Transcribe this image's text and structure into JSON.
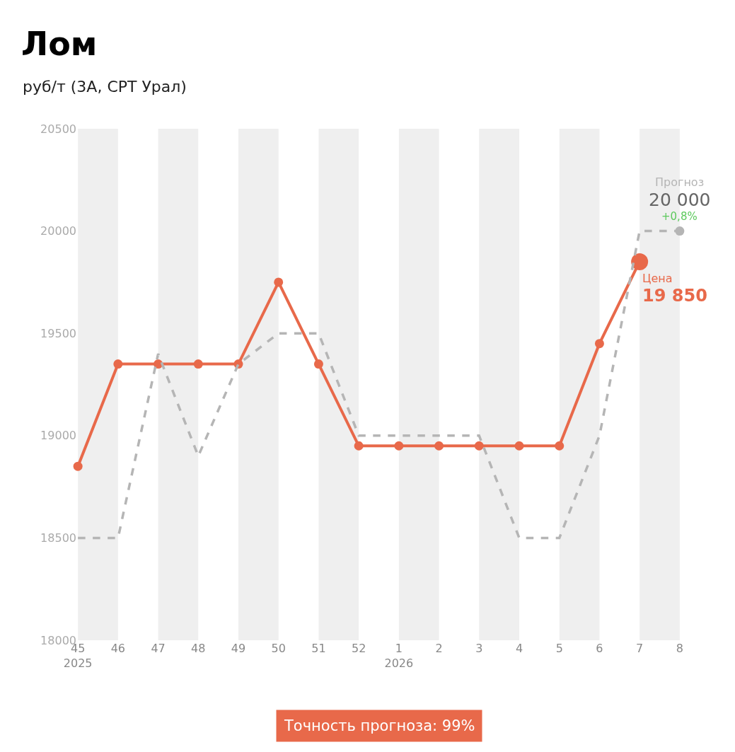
{
  "chart_data": {
    "type": "line",
    "title": "Лом",
    "subtitle": "руб/т (3А, СРТ Урал)",
    "categories": [
      "45\n2025",
      "46",
      "47",
      "48",
      "49",
      "50",
      "51",
      "52",
      "1\n2026",
      "2",
      "3",
      "4",
      "5",
      "6",
      "7",
      "8"
    ],
    "series": [
      {
        "name": "Цена",
        "color": "#e8694a",
        "line_style": "solid",
        "marker": "circle",
        "values": [
          18850,
          19350,
          19350,
          19350,
          19350,
          19750,
          19350,
          18950,
          18950,
          18950,
          18950,
          18950,
          18950,
          19450,
          19850,
          null
        ],
        "value_labels": [
          null,
          null,
          null,
          null,
          null,
          null,
          null,
          null,
          null,
          null,
          null,
          null,
          null,
          null,
          "19 850",
          null
        ]
      },
      {
        "name": "Прогноз",
        "color": "#b5b5b5",
        "line_style": "dashed",
        "marker": "none",
        "values": [
          18500,
          18500,
          19400,
          18900,
          19350,
          19500,
          19500,
          19000,
          19000,
          19000,
          19000,
          18500,
          18500,
          19000,
          20000,
          20000
        ],
        "value_labels": [
          null,
          null,
          null,
          null,
          null,
          null,
          null,
          null,
          null,
          null,
          null,
          null,
          null,
          null,
          null,
          "20 000"
        ]
      }
    ],
    "ylim": [
      18000,
      20500
    ],
    "yticks": [
      18000,
      18500,
      19000,
      19500,
      20000,
      20500
    ],
    "grid": false,
    "legend": false,
    "bands": [
      {
        "axis": "x",
        "from": "45\n2025",
        "to": "46",
        "color": "#efefef"
      },
      {
        "axis": "x",
        "from": "47",
        "to": "48",
        "color": "#efefef"
      },
      {
        "axis": "x",
        "from": "49",
        "to": "50",
        "color": "#efefef"
      },
      {
        "axis": "x",
        "from": "51",
        "to": "52",
        "color": "#efefef"
      },
      {
        "axis": "x",
        "from": "1\n2026",
        "to": "2",
        "color": "#efefef"
      },
      {
        "axis": "x",
        "from": "3",
        "to": "4",
        "color": "#efefef"
      },
      {
        "axis": "x",
        "from": "5",
        "to": "6",
        "color": "#efefef"
      },
      {
        "axis": "x",
        "from": "7",
        "to": "8",
        "color": "#efefef"
      }
    ],
    "annotations": [
      {
        "text": "+0,8%",
        "x": "8",
        "y": 20000
      },
      "Точность прогноза: 99%"
    ]
  }
}
